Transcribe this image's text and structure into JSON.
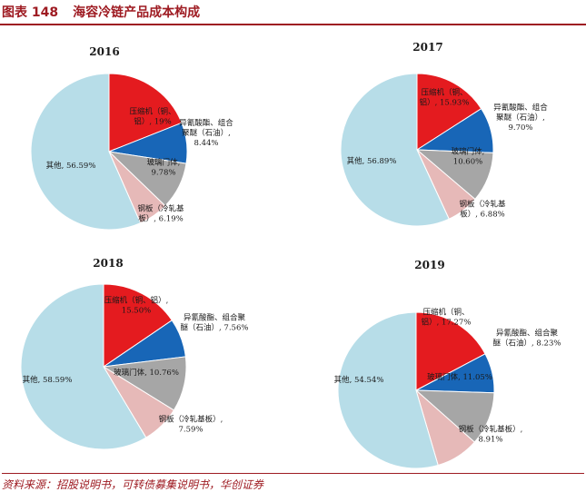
{
  "figure": {
    "number": "图表 148",
    "title": "海容冷链产品成本构成",
    "source": "资料来源：招股说明书，可转债募集说明书，华创证券"
  },
  "colors": {
    "red": "#e41b1f",
    "blue": "#1866b7",
    "gray": "#a6a6a6",
    "pink": "#e6b9b8",
    "lightblue": "#b7dde8"
  },
  "chart_data": [
    {
      "type": "pie",
      "title": "2016",
      "slices": [
        {
          "name": "压缩机（铜、铝）",
          "value": 19,
          "display": "压缩机（铜、\n铝）, 19%",
          "color": "red"
        },
        {
          "name": "异氰酸酯、组合聚醚（石油）",
          "value": 8.44,
          "display": "异氰酸酯、组合\n聚醚（石油）,\n8.44%",
          "color": "blue"
        },
        {
          "name": "玻璃门体",
          "value": 9.78,
          "display": "玻璃门体,\n9.78%",
          "color": "gray"
        },
        {
          "name": "钢板（冷轧基板）",
          "value": 6.19,
          "display": "钢板（冷轧基\n板）, 6.19%",
          "color": "pink"
        },
        {
          "name": "其他",
          "value": 56.59,
          "display": "其他, 56.59%",
          "color": "lightblue"
        }
      ]
    },
    {
      "type": "pie",
      "title": "2017",
      "slices": [
        {
          "name": "压缩机（铜、铝）",
          "value": 15.93,
          "display": "压缩机（铜、\n铝）, 15.93%",
          "color": "red"
        },
        {
          "name": "异氰酸酯、组合聚醚（石油）",
          "value": 9.7,
          "display": "异氰酸酯、组合\n聚醚（石油）,\n9.70%",
          "color": "blue"
        },
        {
          "name": "玻璃门体",
          "value": 10.6,
          "display": "玻璃门体,\n10.60%",
          "color": "gray"
        },
        {
          "name": "钢板（冷轧基板）",
          "value": 6.88,
          "display": "钢板（冷轧基\n板）, 6.88%",
          "color": "pink"
        },
        {
          "name": "其他",
          "value": 56.89,
          "display": "其他, 56.89%",
          "color": "lightblue"
        }
      ]
    },
    {
      "type": "pie",
      "title": "2018",
      "slices": [
        {
          "name": "压缩机（铜、铝）",
          "value": 15.5,
          "display": "压缩机（铜、铝）,\n15.50%",
          "color": "red"
        },
        {
          "name": "异氰酸酯、组合聚醚（石油）",
          "value": 7.56,
          "display": "异氰酸酯、组合聚\n醚（石油）, 7.56%",
          "color": "blue"
        },
        {
          "name": "玻璃门体",
          "value": 10.76,
          "display": "玻璃门体, 10.76%",
          "color": "gray"
        },
        {
          "name": "钢板（冷轧基板）",
          "value": 7.59,
          "display": "钢板（冷轧基板）,\n7.59%",
          "color": "pink"
        },
        {
          "name": "其他",
          "value": 58.59,
          "display": "其他, 58.59%",
          "color": "lightblue"
        }
      ]
    },
    {
      "type": "pie",
      "title": "2019",
      "slices": [
        {
          "name": "压缩机（铜、铝）",
          "value": 17.27,
          "display": "压缩机（铜、\n铝）, 17.27%",
          "color": "red"
        },
        {
          "name": "异氰酸酯、组合聚醚（石油）",
          "value": 8.23,
          "display": "异氰酸酯、组合聚\n醚（石油）, 8.23%",
          "color": "blue"
        },
        {
          "name": "玻璃门体",
          "value": 11.05,
          "display": "玻璃门体, 11.05%",
          "color": "gray"
        },
        {
          "name": "钢板（冷轧基板）",
          "value": 8.91,
          "display": "钢板（冷轧基板）,\n8.91%",
          "color": "pink"
        },
        {
          "name": "其他",
          "value": 54.54,
          "display": "其他, 54.54%",
          "color": "lightblue"
        }
      ]
    }
  ]
}
